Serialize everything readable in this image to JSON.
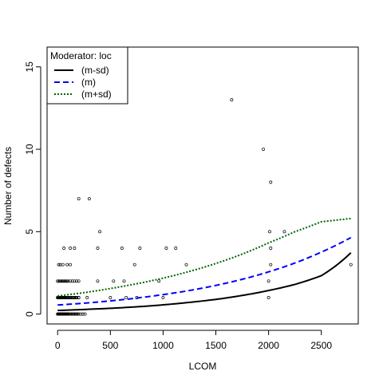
{
  "chart_data": {
    "type": "scatter",
    "title": "",
    "xlabel": "LCOM",
    "ylabel": "Number of defects",
    "xlim": [
      -100,
      2850
    ],
    "ylim": [
      -0.6,
      16.2
    ],
    "x_ticks": [
      0,
      500,
      1000,
      1500,
      2000,
      2500
    ],
    "x_tick_labels": [
      "0",
      "500",
      "1000",
      "1500",
      "2000",
      "2500"
    ],
    "y_ticks": [
      0,
      5,
      10,
      15
    ],
    "y_tick_labels": [
      "0",
      "5",
      "10",
      "15"
    ],
    "grid": false,
    "legend": {
      "title": "Moderator: loc",
      "placement": "top-left",
      "entries": [
        {
          "label": "(m-sd)",
          "color": "#000000",
          "dash": "solid"
        },
        {
          "label": "(m)",
          "color": "#0000ff",
          "dash": "dashed"
        },
        {
          "label": "(m+sd)",
          "color": "#006400",
          "dash": "dotted"
        }
      ]
    },
    "points": {
      "x": [
        0,
        5,
        10,
        15,
        20,
        25,
        30,
        35,
        40,
        45,
        50,
        55,
        60,
        65,
        70,
        75,
        80,
        85,
        90,
        95,
        100,
        110,
        120,
        130,
        140,
        150,
        160,
        170,
        180,
        190,
        200,
        220,
        240,
        260,
        0,
        5,
        10,
        15,
        20,
        25,
        30,
        35,
        40,
        45,
        50,
        55,
        60,
        65,
        70,
        75,
        80,
        90,
        100,
        110,
        120,
        130,
        140,
        150,
        160,
        170,
        180,
        200,
        0,
        10,
        20,
        30,
        40,
        50,
        60,
        70,
        80,
        100,
        120,
        140,
        160,
        180,
        200,
        280,
        500,
        650,
        750,
        1000,
        2000,
        0,
        10,
        20,
        30,
        40,
        50,
        60,
        70,
        80,
        90,
        100,
        120,
        140,
        160,
        180,
        200,
        380,
        530,
        630,
        960,
        2000,
        10,
        25,
        50,
        90,
        120,
        730,
        1220,
        2020,
        2780,
        60,
        120,
        160,
        380,
        610,
        780,
        1030,
        1120,
        2020,
        400,
        2010,
        2150,
        200,
        300,
        2020,
        1950,
        1650
      ],
      "y": [
        0,
        0,
        0,
        0,
        0,
        0,
        0,
        0,
        0,
        0,
        0,
        0,
        0,
        0,
        0,
        0,
        0,
        0,
        0,
        0,
        0,
        0,
        0,
        0,
        0,
        0,
        0,
        0,
        0,
        0,
        0,
        0,
        0,
        0,
        1,
        1,
        1,
        1,
        1,
        1,
        1,
        1,
        1,
        1,
        1,
        1,
        1,
        1,
        1,
        1,
        1,
        1,
        1,
        1,
        1,
        1,
        1,
        1,
        1,
        1,
        1,
        1,
        1,
        1,
        1,
        1,
        1,
        1,
        1,
        1,
        1,
        1,
        1,
        1,
        1,
        1,
        1,
        1,
        1,
        1,
        1,
        1,
        1,
        2,
        2,
        2,
        2,
        2,
        2,
        2,
        2,
        2,
        2,
        2,
        2,
        2,
        2,
        2,
        2,
        2,
        2,
        2,
        2,
        2,
        3,
        3,
        3,
        3,
        3,
        3,
        3,
        3,
        3,
        4,
        4,
        4,
        4,
        4,
        4,
        4,
        4,
        4,
        5,
        5,
        5,
        7,
        7,
        8,
        10,
        13
      ]
    },
    "series": [
      {
        "name": "(m-sd)",
        "color": "#000000",
        "dash": "solid",
        "x": [
          0,
          250,
          500,
          750,
          1000,
          1250,
          1500,
          1750,
          2000,
          2250,
          2500,
          2780
        ],
        "y": [
          0.22,
          0.28,
          0.35,
          0.44,
          0.56,
          0.71,
          0.89,
          1.13,
          1.43,
          1.8,
          2.33,
          3.72
        ]
      },
      {
        "name": "(m)",
        "color": "#0000ff",
        "dash": "dashed",
        "x": [
          0,
          250,
          500,
          750,
          1000,
          1250,
          1500,
          1750,
          2000,
          2250,
          2500,
          2780
        ],
        "y": [
          0.55,
          0.66,
          0.8,
          0.97,
          1.18,
          1.43,
          1.74,
          2.11,
          2.56,
          3.1,
          3.76,
          4.64
        ]
      },
      {
        "name": "(m+sd)",
        "color": "#006400",
        "dash": "dotted",
        "x": [
          0,
          250,
          500,
          750,
          1000,
          1250,
          1500,
          1750,
          2000,
          2250,
          2500,
          2780
        ],
        "y": [
          1.1,
          1.3,
          1.55,
          1.84,
          2.18,
          2.59,
          3.07,
          3.64,
          4.32,
          5.0,
          5.6,
          5.8
        ]
      }
    ]
  }
}
